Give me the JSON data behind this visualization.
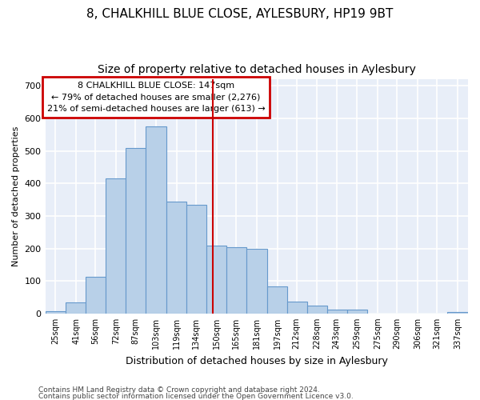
{
  "title": "8, CHALKHILL BLUE CLOSE, AYLESBURY, HP19 9BT",
  "subtitle": "Size of property relative to detached houses in Aylesbury",
  "xlabel": "Distribution of detached houses by size in Aylesbury",
  "ylabel": "Number of detached properties",
  "categories": [
    "25sqm",
    "41sqm",
    "56sqm",
    "72sqm",
    "87sqm",
    "103sqm",
    "119sqm",
    "134sqm",
    "150sqm",
    "165sqm",
    "181sqm",
    "197sqm",
    "212sqm",
    "228sqm",
    "243sqm",
    "259sqm",
    "275sqm",
    "290sqm",
    "306sqm",
    "321sqm",
    "337sqm"
  ],
  "values": [
    8,
    35,
    112,
    415,
    510,
    575,
    345,
    335,
    210,
    205,
    200,
    82,
    37,
    25,
    13,
    13,
    0,
    0,
    0,
    0,
    5
  ],
  "bar_color": "#b8d0e8",
  "bar_edge_color": "#6699cc",
  "property_line_color": "#cc0000",
  "annotation_line1": "8 CHALKHILL BLUE CLOSE: 147sqm",
  "annotation_line2": "← 79% of detached houses are smaller (2,276)",
  "annotation_line3": "21% of semi-detached houses are larger (613) →",
  "annotation_box_color": "#cc0000",
  "annotation_bg": "#ffffff",
  "ylim": [
    0,
    720
  ],
  "yticks": [
    0,
    100,
    200,
    300,
    400,
    500,
    600,
    700
  ],
  "footer1": "Contains HM Land Registry data © Crown copyright and database right 2024.",
  "footer2": "Contains public sector information licensed under the Open Government Licence v3.0.",
  "fig_bg": "#ffffff",
  "plot_bg": "#e8eef8",
  "grid_color": "#ffffff",
  "title_fontsize": 11,
  "subtitle_fontsize": 10,
  "ylabel_fontsize": 8,
  "xlabel_fontsize": 9
}
